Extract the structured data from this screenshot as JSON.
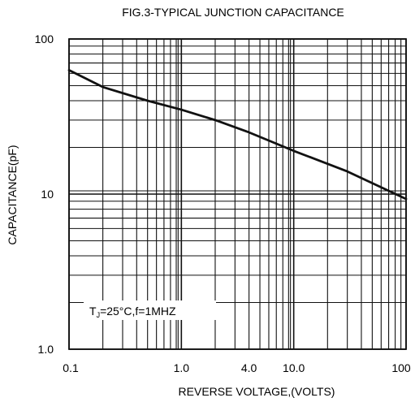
{
  "chart_data": {
    "type": "line",
    "title": "FIG.3-TYPICAL JUNCTION CAPACITANCE",
    "xlabel": "REVERSE VOLTAGE,(VOLTS)",
    "ylabel": "CAPACITANCE(pF)",
    "x_scale": "log",
    "y_scale": "log",
    "xlim": [
      0.1,
      100
    ],
    "ylim": [
      1.0,
      100
    ],
    "grid": true,
    "x_ticks": [
      {
        "value": 0.1,
        "label": "0.1"
      },
      {
        "value": 1,
        "label": "1.0"
      },
      {
        "value": 4,
        "label": "4.0"
      },
      {
        "value": 10,
        "label": "10.0"
      },
      {
        "value": 100,
        "label": "100"
      }
    ],
    "y_ticks": [
      {
        "value": 1,
        "label": "1.0"
      },
      {
        "value": 10,
        "label": "10"
      },
      {
        "value": 100,
        "label": "100"
      }
    ],
    "series": [
      {
        "color": "#111111",
        "x": [
          0.1,
          0.2,
          0.5,
          1,
          2,
          4,
          10,
          30,
          100
        ],
        "y": [
          63,
          49,
          40,
          35,
          30,
          25,
          19,
          14,
          9.3
        ]
      }
    ],
    "annotation": "T_J=25°C,f=1MHZ",
    "annotation_parts": {
      "pre": "T",
      "sub": "J",
      "post": "=25°C,f=1MHZ"
    }
  }
}
